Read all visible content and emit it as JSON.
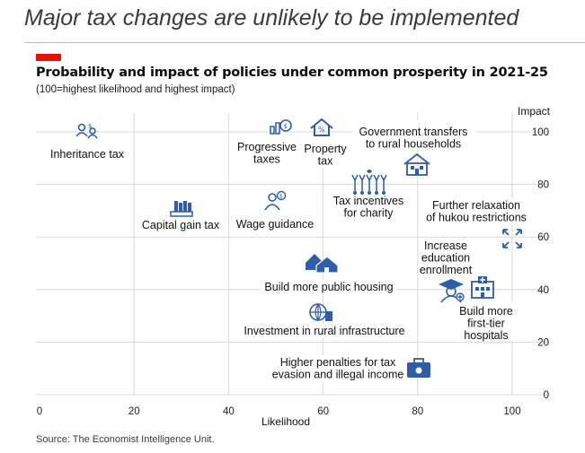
{
  "headline": "Major tax changes are unlikely to be implemented",
  "chart_data": {
    "type": "scatter",
    "title": "Probability and impact of policies under common prosperity in 2021-25",
    "subtitle": "(100=highest likelihood and highest impact)",
    "xlabel": "Likelihood",
    "ylabel": "Impact",
    "xlim": [
      0,
      100
    ],
    "ylim": [
      0,
      100
    ],
    "xticks": [
      "0",
      "20",
      "40",
      "60",
      "80",
      "100"
    ],
    "yticks": [
      "0",
      "20",
      "40",
      "60",
      "80",
      "100"
    ],
    "grid": true,
    "points": [
      {
        "label": "Inheritance tax",
        "x": 10,
        "y": 95,
        "icon": "inheritance-icon"
      },
      {
        "label": "Capital gain tax",
        "x": 30,
        "y": 70,
        "icon": "coins-icon"
      },
      {
        "label": "Progressive taxes",
        "x": 50,
        "y": 98,
        "icon": "money-bag-icon"
      },
      {
        "label": "Property tax",
        "x": 60,
        "y": 98,
        "icon": "house-percent-icon"
      },
      {
        "label": "Government transfers to rural households",
        "x": 80,
        "y": 85,
        "icon": "house-icon"
      },
      {
        "label": "Wage guidance",
        "x": 50,
        "y": 72,
        "icon": "person-coin-icon"
      },
      {
        "label": "Tax incentives for charity",
        "x": 70,
        "y": 78,
        "icon": "raised-hands-icon"
      },
      {
        "label": "Further relaxation of hukou restrictions",
        "x": 100,
        "y": 58,
        "icon": "expand-arrows-icon"
      },
      {
        "label": "Build more public housing",
        "x": 60,
        "y": 48,
        "icon": "houses-icon"
      },
      {
        "label": "Increase education enrollment",
        "x": 87,
        "y": 38,
        "icon": "graduate-icon"
      },
      {
        "label": "Build more first-tier hospitals",
        "x": 92,
        "y": 38,
        "icon": "hospital-icon"
      },
      {
        "label": "Investment in rural infrastructure",
        "x": 60,
        "y": 28,
        "icon": "globe-building-icon"
      },
      {
        "label": "Higher penalties for tax evasion and illegal income",
        "x": 80,
        "y": 8,
        "icon": "briefcase-icon"
      }
    ],
    "annotations": [
      {
        "lines": [
          "Inheritance tax"
        ]
      },
      {
        "lines": [
          "Capital gain tax"
        ]
      },
      {
        "lines": [
          "Progressive",
          "taxes"
        ]
      },
      {
        "lines": [
          "Property",
          "tax"
        ]
      },
      {
        "lines": [
          "Government transfers",
          "to rural households"
        ]
      },
      {
        "lines": [
          "Wage guidance"
        ]
      },
      {
        "lines": [
          "Tax incentives",
          "for charity"
        ]
      },
      {
        "lines": [
          "Further relaxation",
          "of hukou restrictions"
        ]
      },
      {
        "lines": [
          "Build more public housing"
        ]
      },
      {
        "lines": [
          "Increase",
          "education",
          "enrollment"
        ]
      },
      {
        "lines": [
          "Build more",
          "first-tier",
          "hospitals"
        ]
      },
      {
        "lines": [
          "Investment in rural infrastructure"
        ]
      },
      {
        "lines": [
          "Higher penalties for tax",
          "evasion and illegal income"
        ]
      }
    ],
    "colors": {
      "icon": "#2f5da8",
      "grid": "#d9d9d9",
      "brand": "#e3120b"
    }
  },
  "source": "Source: The Economist Intelligence Unit."
}
